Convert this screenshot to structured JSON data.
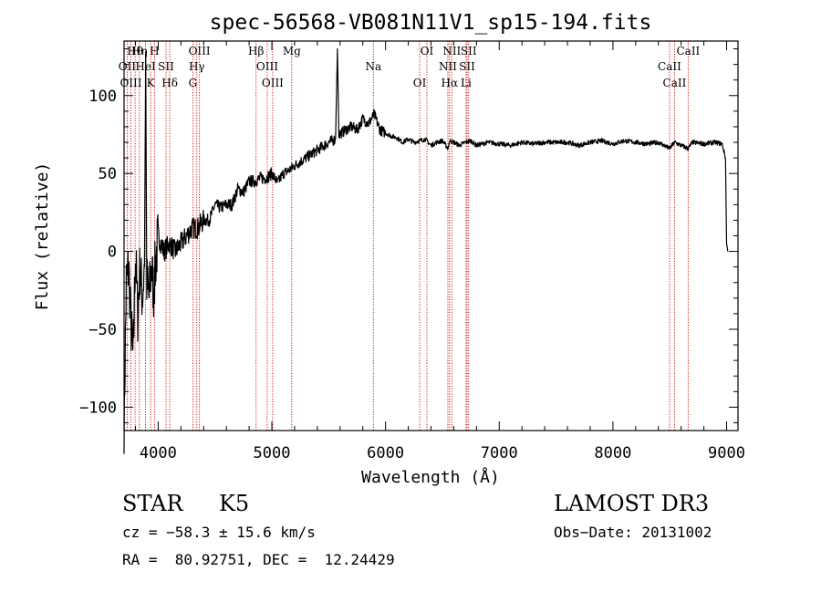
{
  "chart_data": {
    "type": "line",
    "title": "spec-56568-VB081N11V1_sp15-194.fits",
    "xlabel": "Wavelength (Å)",
    "ylabel": "Flux (relative)",
    "xlim": [
      3700,
      9100
    ],
    "ylim": [
      -115,
      135
    ],
    "xticks": [
      4000,
      5000,
      6000,
      7000,
      8000,
      9000
    ],
    "xtick_labels": [
      "4000",
      "5000",
      "6000",
      "7000",
      "8000",
      "9000"
    ],
    "yticks": [
      -100,
      -50,
      0,
      50,
      100
    ],
    "ytick_labels": [
      "−100",
      "−50",
      "0",
      "50",
      "100"
    ],
    "series": [
      {
        "name": "spectrum",
        "x": [
          3700,
          3720,
          3740,
          3760,
          3780,
          3800,
          3820,
          3840,
          3860,
          3880,
          3890,
          3900,
          3920,
          3940,
          3960,
          3980,
          4000,
          4050,
          4100,
          4150,
          4200,
          4250,
          4300,
          4350,
          4400,
          4450,
          4500,
          4550,
          4600,
          4650,
          4700,
          4750,
          4800,
          4850,
          4900,
          4950,
          5000,
          5050,
          5100,
          5150,
          5200,
          5300,
          5400,
          5500,
          5560,
          5577,
          5590,
          5650,
          5700,
          5750,
          5800,
          5850,
          5900,
          5950,
          6000,
          6050,
          6100,
          6150,
          6200,
          6250,
          6300,
          6350,
          6400,
          6450,
          6500,
          6550,
          6563,
          6600,
          6650,
          6700,
          6750,
          6800,
          6900,
          7000,
          7100,
          7200,
          7300,
          7400,
          7500,
          7600,
          7700,
          7800,
          7900,
          8000,
          8100,
          8200,
          8300,
          8400,
          8498,
          8542,
          8600,
          8662,
          8700,
          8800,
          8900,
          8960,
          8990,
          9000,
          9010
        ],
        "y": [
          -110,
          -20,
          -10,
          -45,
          -70,
          0,
          -40,
          -10,
          -30,
          -10,
          128,
          -20,
          -30,
          -10,
          -25,
          -5,
          10,
          0,
          5,
          0,
          5,
          10,
          15,
          15,
          20,
          20,
          30,
          28,
          30,
          30,
          40,
          38,
          45,
          45,
          47,
          47,
          50,
          44,
          50,
          52,
          55,
          60,
          65,
          70,
          72,
          130,
          75,
          78,
          80,
          78,
          85,
          82,
          88,
          78,
          76,
          74,
          73,
          70,
          72,
          70,
          71,
          72,
          68,
          70,
          71,
          66,
          71,
          70,
          68,
          70,
          71,
          68,
          70,
          69,
          68,
          70,
          69,
          70,
          70,
          70,
          68,
          70,
          71,
          69,
          71,
          70,
          69,
          70,
          66,
          70,
          68,
          66,
          70,
          69,
          70,
          69,
          60,
          5,
          0
        ]
      }
    ],
    "lines": [
      {
        "name": "Hθ",
        "x": 3797
      },
      {
        "name": "OII",
        "x": 3727
      },
      {
        "name": "OIII",
        "x": 3760
      },
      {
        "name": "Hη",
        "x": 3835
      },
      {
        "name": "HeI",
        "x": 3889
      },
      {
        "name": "K",
        "x": 3934
      },
      {
        "name": "H",
        "x": 3968
      },
      {
        "name": "SII",
        "x": 4069
      },
      {
        "name": "Hδ",
        "x": 4102
      },
      {
        "name": "OIII",
        "x": 4363
      },
      {
        "name": "Hγ",
        "x": 4340
      },
      {
        "name": "G",
        "x": 4305
      },
      {
        "name": "Hβ",
        "x": 4861
      },
      {
        "name": "OIII",
        "x": 4959
      },
      {
        "name": "OIII",
        "x": 5007
      },
      {
        "name": "Mg",
        "x": 5175
      },
      {
        "name": "Na",
        "x": 5893
      },
      {
        "name": "OI",
        "x": 6300
      },
      {
        "name": "OI",
        "x": 6364
      },
      {
        "name": "NII",
        "x": 6548
      },
      {
        "name": "Hα",
        "x": 6563
      },
      {
        "name": "NII",
        "x": 6583
      },
      {
        "name": "SII",
        "x": 6717
      },
      {
        "name": "Li",
        "x": 6708
      },
      {
        "name": "SII",
        "x": 6731
      },
      {
        "name": "CaII",
        "x": 8498
      },
      {
        "name": "CaII",
        "x": 8542
      },
      {
        "name": "CaII",
        "x": 8662
      }
    ]
  },
  "info": {
    "object_class": "STAR",
    "subclass": "K5",
    "survey": "LAMOST DR3",
    "redshift": "cz = −58.3 ± 15.6 km/s",
    "obs_date": "Obs−Date: 20131002",
    "coords": "RA =  80.92751, DEC =  12.24429"
  },
  "colors": {
    "line_marker": "#cc0000",
    "spectrum": "#000000",
    "axis": "#000000"
  }
}
